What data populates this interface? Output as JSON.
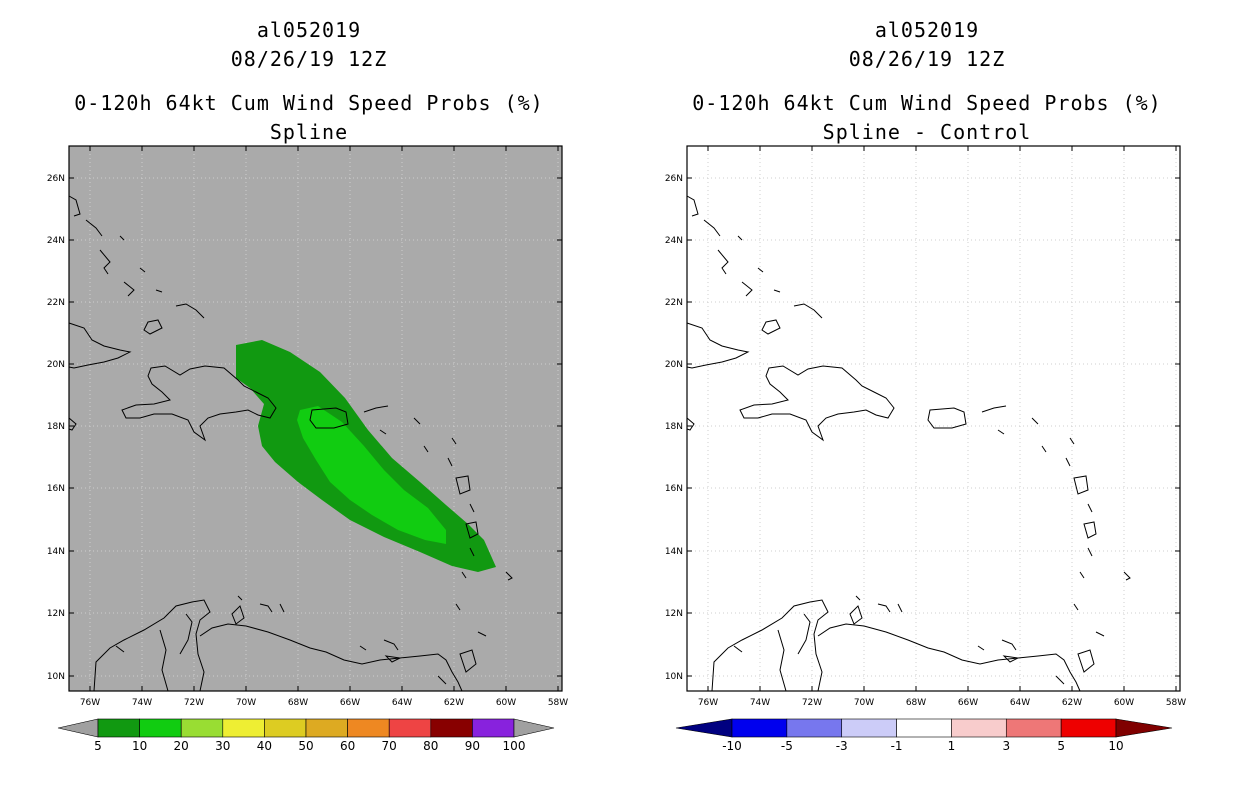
{
  "left_panel": {
    "storm_id": "al052019",
    "datetime": "08/26/19 12Z",
    "product": "0-120h 64kt Cum Wind Speed Probs (%)",
    "subtitle": "Spline",
    "background_color": "#aaaaaa"
  },
  "right_panel": {
    "storm_id": "al052019",
    "datetime": "08/26/19 12Z",
    "product": "0-120h 64kt Cum Wind Speed Probs (%)",
    "subtitle": "Spline - Control",
    "background_color": "#ffffff"
  },
  "map": {
    "lon_ticks": [
      "76W",
      "74W",
      "72W",
      "70W",
      "68W",
      "66W",
      "64W",
      "62W",
      "60W",
      "58W"
    ],
    "lat_ticks": [
      "26N",
      "24N",
      "22N",
      "20N",
      "18N",
      "16N",
      "14N",
      "12N",
      "10N"
    ]
  },
  "left_colorbar": {
    "labels": [
      "5",
      "10",
      "20",
      "30",
      "40",
      "50",
      "60",
      "70",
      "80",
      "90",
      "100"
    ],
    "under_color": "#a0a0a0",
    "over_color": "#a0a0a0",
    "colors": [
      "#119911",
      "#11cc11",
      "#99dd33",
      "#eeee33",
      "#ddcc22",
      "#ddaa22",
      "#ee8822",
      "#ee4444",
      "#880000",
      "#8822dd"
    ]
  },
  "right_colorbar": {
    "labels": [
      "-10",
      "-5",
      "-3",
      "-1",
      "1",
      "3",
      "5",
      "10"
    ],
    "under_color": "#000080",
    "over_color": "#800000",
    "colors": [
      "#0000ee",
      "#7777ee",
      "#ccccf8",
      "#ffffff",
      "#f8cccc",
      "#ee7777",
      "#ee0000"
    ]
  },
  "probability_contours": [
    {
      "level": "5",
      "color": "#119911"
    },
    {
      "level": "10",
      "color": "#11cc11"
    }
  ]
}
